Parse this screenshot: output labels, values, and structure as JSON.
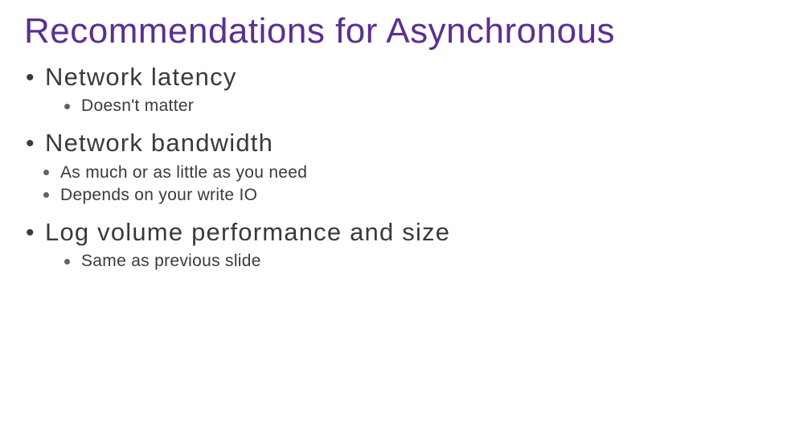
{
  "slide": {
    "title": "Recommendations for Asynchronous",
    "title_color": "#5c2e91",
    "body_color": "#3a3a3a",
    "background_color": "#ffffff",
    "title_fontsize": 44,
    "l1_fontsize": 31,
    "l2_fontsize": 21,
    "items": [
      {
        "text": "Network latency",
        "sub_indent": "inner",
        "subs": [
          {
            "text": "Doesn't matter"
          }
        ]
      },
      {
        "text": "Network bandwidth",
        "sub_indent": "outer",
        "subs": [
          {
            "text": "As much or as little as you need"
          },
          {
            "text": "Depends on your write IO"
          }
        ]
      },
      {
        "text": "Log volume performance and size",
        "sub_indent": "inner",
        "subs": [
          {
            "text": "Same as previous slide"
          }
        ]
      }
    ]
  }
}
